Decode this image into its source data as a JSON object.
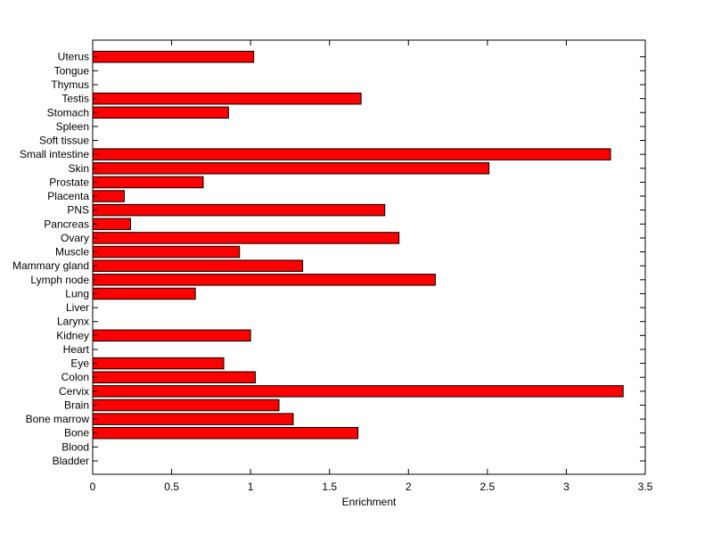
{
  "chart_data": {
    "type": "bar",
    "orientation": "horizontal",
    "categories": [
      "Bladder",
      "Blood",
      "Bone",
      "Bone marrow",
      "Brain",
      "Cervix",
      "Colon",
      "Eye",
      "Heart",
      "Kidney",
      "Larynx",
      "Liver",
      "Lung",
      "Lymph node",
      "Mammary gland",
      "Muscle",
      "Ovary",
      "Pancreas",
      "PNS",
      "Placenta",
      "Prostate",
      "Skin",
      "Small intestine",
      "Soft tissue",
      "Spleen",
      "Stomach",
      "Testis",
      "Thymus",
      "Tongue",
      "Uterus"
    ],
    "values": [
      0,
      0,
      1.68,
      1.27,
      1.18,
      3.36,
      1.03,
      0.83,
      0,
      1.0,
      0,
      0,
      0.65,
      2.17,
      1.33,
      0.93,
      1.94,
      0.24,
      1.85,
      0.2,
      0.7,
      2.51,
      3.28,
      0,
      0,
      0.86,
      1.7,
      0,
      0,
      1.02
    ],
    "xlabel": "Enrichment",
    "ylabel": "",
    "title": "",
    "xlim": [
      0,
      3.5
    ],
    "xticks": [
      "0",
      "0.5",
      "1",
      "1.5",
      "2",
      "2.5",
      "3",
      "3.5"
    ],
    "bar_color": "#ff0000",
    "bar_edge_color": "#000000",
    "grid": false
  }
}
